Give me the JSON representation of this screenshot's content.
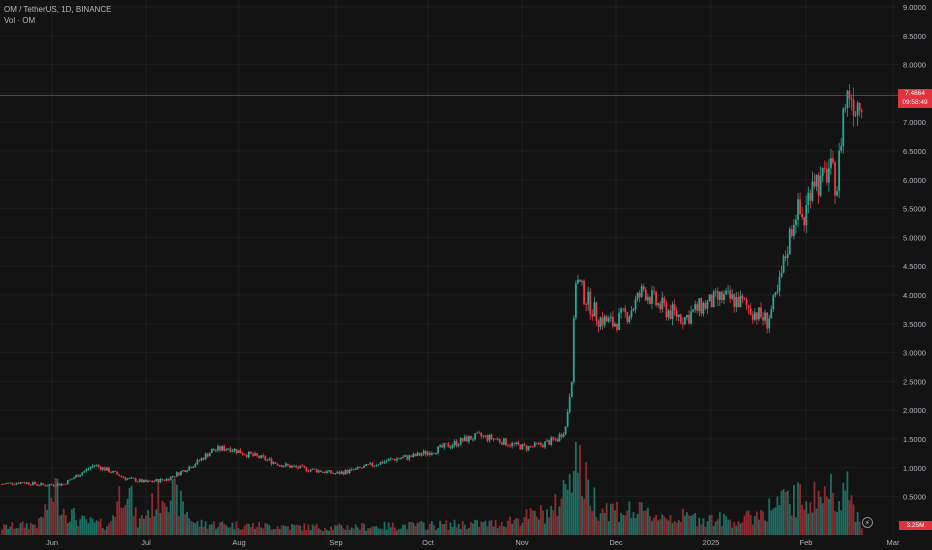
{
  "header": {
    "symbol_line": "OM / TetherUS, 1D, BINANCE",
    "volume_line": "Vol · OM"
  },
  "price_tag": {
    "price": "7.4664",
    "countdown": "09:58:49"
  },
  "volume_tag": "3.25M",
  "colors": {
    "up": "#22ab94",
    "down": "#f23645",
    "up_vol": "#1b6f63",
    "down_vol": "#8d2b31",
    "grid": "#1f1f1f",
    "axis_text": "#b2b5be",
    "price_line": "#e2323d"
  },
  "chart_data": {
    "type": "candlestick",
    "title": "OM / TetherUS, 1D, BINANCE",
    "x_ticks": [
      "Jun",
      "Jul",
      "Aug",
      "Sep",
      "Oct",
      "Nov",
      "Dec",
      "2025",
      "Feb",
      "Mar"
    ],
    "y_ticks": [
      "9.0000",
      "8.5000",
      "8.0000",
      "7.5000",
      "7.0000",
      "6.5000",
      "6.0000",
      "5.5000",
      "5.0000",
      "4.5000",
      "4.0000",
      "3.5000",
      "3.0000",
      "2.5000",
      "2.0000",
      "1.5000",
      "1.0000",
      "0.5000"
    ],
    "ylim": [
      0,
      9
    ],
    "last_price": 7.4664,
    "close_path": [
      {
        "t": 0,
        "c": 0.72
      },
      {
        "t": 10,
        "c": 0.75
      },
      {
        "t": 20,
        "c": 0.7
      },
      {
        "t": 30,
        "c": 0.72
      },
      {
        "t": 38,
        "c": 0.9
      },
      {
        "t": 45,
        "c": 1.05
      },
      {
        "t": 52,
        "c": 0.95
      },
      {
        "t": 60,
        "c": 0.82
      },
      {
        "t": 70,
        "c": 0.75
      },
      {
        "t": 80,
        "c": 0.8
      },
      {
        "t": 88,
        "c": 0.95
      },
      {
        "t": 95,
        "c": 1.1
      },
      {
        "t": 102,
        "c": 1.3
      },
      {
        "t": 110,
        "c": 1.35
      },
      {
        "t": 118,
        "c": 1.25
      },
      {
        "t": 128,
        "c": 1.15
      },
      {
        "t": 136,
        "c": 1.05
      },
      {
        "t": 144,
        "c": 1.0
      },
      {
        "t": 154,
        "c": 0.95
      },
      {
        "t": 162,
        "c": 0.9
      },
      {
        "t": 170,
        "c": 0.95
      },
      {
        "t": 180,
        "c": 1.05
      },
      {
        "t": 190,
        "c": 1.15
      },
      {
        "t": 200,
        "c": 1.2
      },
      {
        "t": 210,
        "c": 1.3
      },
      {
        "t": 218,
        "c": 1.4
      },
      {
        "t": 226,
        "c": 1.5
      },
      {
        "t": 232,
        "c": 1.55
      },
      {
        "t": 240,
        "c": 1.5
      },
      {
        "t": 248,
        "c": 1.4
      },
      {
        "t": 255,
        "c": 1.35
      },
      {
        "t": 262,
        "c": 1.4
      },
      {
        "t": 270,
        "c": 1.5
      },
      {
        "t": 274,
        "c": 1.7
      },
      {
        "t": 277,
        "c": 2.6
      },
      {
        "t": 279,
        "c": 4.3
      },
      {
        "t": 283,
        "c": 4.0
      },
      {
        "t": 290,
        "c": 3.6
      },
      {
        "t": 297,
        "c": 3.5
      },
      {
        "t": 305,
        "c": 3.7
      },
      {
        "t": 312,
        "c": 4.1
      },
      {
        "t": 318,
        "c": 3.85
      },
      {
        "t": 325,
        "c": 3.7
      },
      {
        "t": 332,
        "c": 3.6
      },
      {
        "t": 340,
        "c": 3.8
      },
      {
        "t": 350,
        "c": 3.95
      },
      {
        "t": 358,
        "c": 3.9
      },
      {
        "t": 366,
        "c": 3.7
      },
      {
        "t": 372,
        "c": 3.55
      },
      {
        "t": 377,
        "c": 4.0
      },
      {
        "t": 381,
        "c": 4.7
      },
      {
        "t": 386,
        "c": 5.5
      },
      {
        "t": 390,
        "c": 5.3
      },
      {
        "t": 394,
        "c": 6.1
      },
      {
        "t": 398,
        "c": 5.9
      },
      {
        "t": 402,
        "c": 6.2
      },
      {
        "t": 406,
        "c": 5.9
      },
      {
        "t": 409,
        "c": 7.2
      },
      {
        "t": 412,
        "c": 7.55
      },
      {
        "t": 415,
        "c": 7.3
      },
      {
        "t": 418,
        "c": 7.5
      }
    ],
    "volume_profile": [
      {
        "t": 0,
        "v": 0.08
      },
      {
        "t": 18,
        "v": 0.12
      },
      {
        "t": 26,
        "v": 0.5
      },
      {
        "t": 30,
        "v": 0.28
      },
      {
        "t": 38,
        "v": 0.15
      },
      {
        "t": 52,
        "v": 0.1
      },
      {
        "t": 60,
        "v": 0.6
      },
      {
        "t": 66,
        "v": 0.12
      },
      {
        "t": 80,
        "v": 0.5
      },
      {
        "t": 86,
        "v": 0.35
      },
      {
        "t": 94,
        "v": 0.12
      },
      {
        "t": 120,
        "v": 0.1
      },
      {
        "t": 160,
        "v": 0.08
      },
      {
        "t": 200,
        "v": 0.1
      },
      {
        "t": 240,
        "v": 0.12
      },
      {
        "t": 268,
        "v": 0.25
      },
      {
        "t": 274,
        "v": 0.5
      },
      {
        "t": 278,
        "v": 0.95
      },
      {
        "t": 282,
        "v": 0.6
      },
      {
        "t": 290,
        "v": 0.3
      },
      {
        "t": 320,
        "v": 0.2
      },
      {
        "t": 360,
        "v": 0.15
      },
      {
        "t": 380,
        "v": 0.35
      },
      {
        "t": 395,
        "v": 0.4
      },
      {
        "t": 410,
        "v": 0.5
      },
      {
        "t": 418,
        "v": 0.1
      }
    ]
  }
}
